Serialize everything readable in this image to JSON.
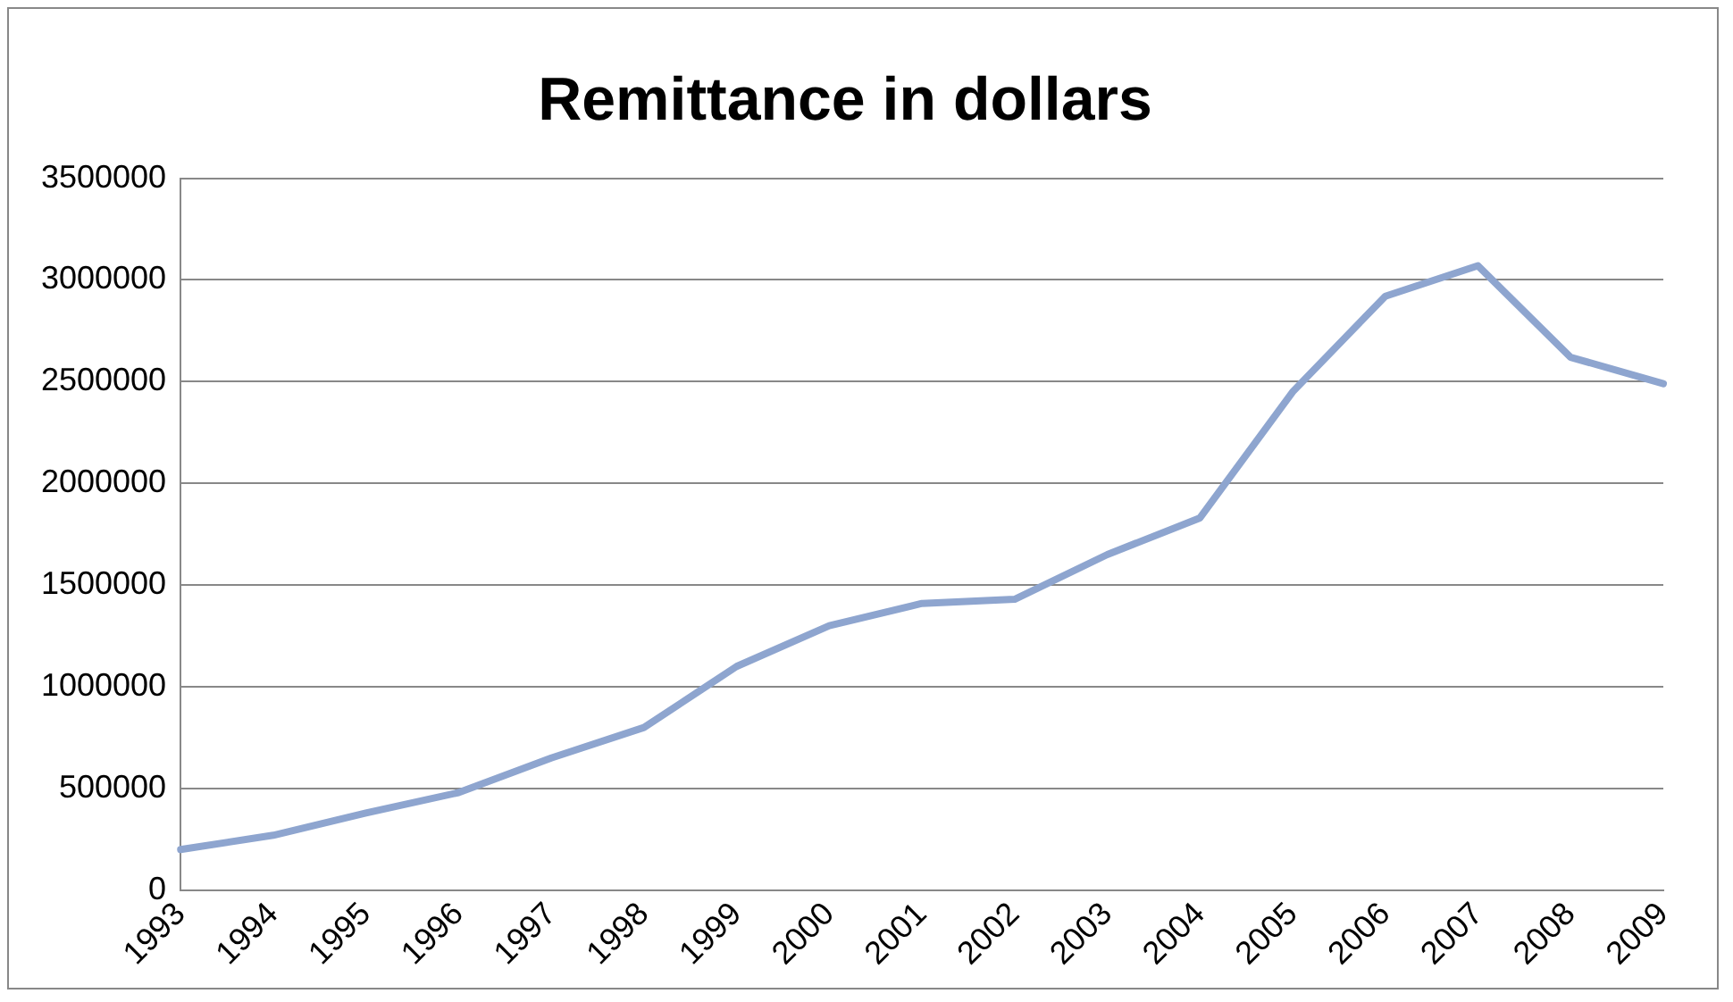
{
  "chart_data": {
    "type": "line",
    "title": "Remittance in dollars",
    "categories": [
      "1993",
      "1994",
      "1995",
      "1996",
      "1997",
      "1998",
      "1999",
      "2000",
      "2001",
      "2002",
      "2003",
      "2004",
      "2005",
      "2006",
      "2007",
      "2008",
      "2009"
    ],
    "series": [
      {
        "color": "#8ea5cf",
        "values": [
          200000,
          270000,
          380000,
          480000,
          650000,
          800000,
          1100000,
          1300000,
          1410000,
          1430000,
          1650000,
          1830000,
          2450000,
          2920000,
          3070000,
          2620000,
          2490000
        ]
      }
    ],
    "ylim": [
      0,
      3500000
    ],
    "yticks": [
      0,
      500000,
      1000000,
      1500000,
      2000000,
      2500000,
      3000000,
      3500000
    ],
    "grid": "y",
    "legend": false,
    "marker": "none",
    "line_style": "solid"
  }
}
